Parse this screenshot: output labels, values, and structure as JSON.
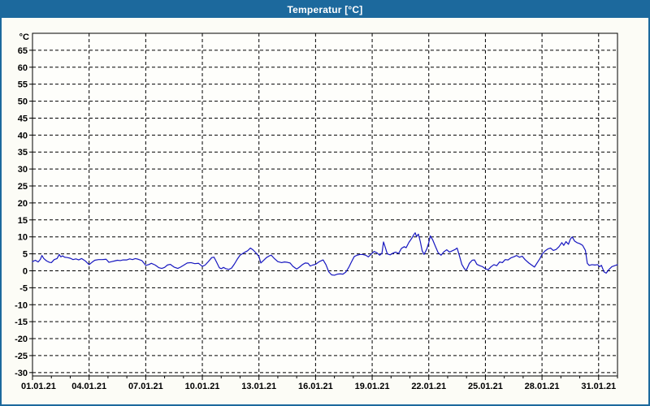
{
  "window": {
    "title": "Temperatur [°C]"
  },
  "colors": {
    "titlebar": "#1c699d",
    "window_border": "#1c699d",
    "plot_background": "#fefefb",
    "plot_border": "#000000",
    "grid": "#000000",
    "line": "#1717c0",
    "label_text": "#000000"
  },
  "chart_data": {
    "type": "line",
    "title": "Temperatur [°C]",
    "y_unit": "°C",
    "grid": "dashed",
    "legend": "none",
    "ylim": [
      -31,
      70
    ],
    "y_ticks": [
      65,
      60,
      55,
      50,
      45,
      40,
      35,
      30,
      25,
      20,
      15,
      10,
      5,
      0,
      -5,
      -10,
      -15,
      -20,
      -25,
      -30
    ],
    "x_range_days": [
      0,
      31
    ],
    "x_tick_days": [
      0,
      3,
      6,
      9,
      12,
      15,
      18,
      21,
      24,
      27,
      30
    ],
    "x_tick_labels": [
      "01.01.21",
      "04.01.21",
      "07.01.21",
      "10.01.21",
      "13.01.21",
      "16.01.21",
      "19.01.21",
      "22.01.21",
      "25.01.21",
      "28.01.21",
      "31.01.21"
    ],
    "x_minor_tick_interval_days": 1,
    "series": [
      {
        "name": "Temperatur",
        "unit": "°C",
        "points": [
          [
            0,
            2.7
          ],
          [
            0.15,
            3.1
          ],
          [
            0.3,
            2.6
          ],
          [
            0.42,
            3.4
          ],
          [
            0.5,
            4.5
          ],
          [
            0.6,
            3.6
          ],
          [
            0.75,
            2.9
          ],
          [
            0.9,
            2.5
          ],
          [
            1.0,
            2.4
          ],
          [
            1.15,
            3.3
          ],
          [
            1.3,
            3.6
          ],
          [
            1.42,
            4.8
          ],
          [
            1.5,
            4.1
          ],
          [
            1.6,
            4.4
          ],
          [
            1.7,
            4.0
          ],
          [
            1.85,
            3.9
          ],
          [
            2.0,
            3.7
          ],
          [
            2.15,
            3.3
          ],
          [
            2.3,
            3.5
          ],
          [
            2.45,
            3.2
          ],
          [
            2.6,
            3.6
          ],
          [
            2.8,
            2.9
          ],
          [
            3.0,
            1.8
          ],
          [
            3.15,
            2.5
          ],
          [
            3.3,
            3.1
          ],
          [
            3.5,
            3.3
          ],
          [
            3.7,
            3.3
          ],
          [
            3.9,
            3.4
          ],
          [
            4.05,
            2.5
          ],
          [
            4.2,
            2.7
          ],
          [
            4.35,
            2.9
          ],
          [
            4.5,
            3.1
          ],
          [
            4.65,
            3.0
          ],
          [
            4.8,
            3.2
          ],
          [
            5.0,
            3.2
          ],
          [
            5.15,
            3.5
          ],
          [
            5.3,
            3.3
          ],
          [
            5.45,
            3.6
          ],
          [
            5.6,
            3.4
          ],
          [
            5.8,
            3.0
          ],
          [
            6.0,
            1.6
          ],
          [
            6.15,
            1.8
          ],
          [
            6.3,
            2.2
          ],
          [
            6.5,
            1.7
          ],
          [
            6.7,
            0.9
          ],
          [
            6.85,
            0.7
          ],
          [
            7.0,
            1.0
          ],
          [
            7.15,
            1.7
          ],
          [
            7.3,
            1.9
          ],
          [
            7.5,
            1.1
          ],
          [
            7.7,
            0.7
          ],
          [
            7.85,
            1.1
          ],
          [
            8.0,
            1.6
          ],
          [
            8.2,
            2.3
          ],
          [
            8.4,
            2.4
          ],
          [
            8.6,
            2.1
          ],
          [
            8.8,
            2.2
          ],
          [
            9.0,
            1.3
          ],
          [
            9.15,
            1.7
          ],
          [
            9.3,
            2.6
          ],
          [
            9.5,
            3.9
          ],
          [
            9.62,
            4.0
          ],
          [
            9.75,
            2.6
          ],
          [
            9.9,
            0.9
          ],
          [
            10.0,
            0.6
          ],
          [
            10.12,
            1.0
          ],
          [
            10.25,
            0.6
          ],
          [
            10.4,
            0.4
          ],
          [
            10.55,
            0.8
          ],
          [
            10.7,
            2.0
          ],
          [
            10.85,
            3.4
          ],
          [
            11.0,
            4.6
          ],
          [
            11.2,
            5.3
          ],
          [
            11.4,
            5.9
          ],
          [
            11.55,
            6.7
          ],
          [
            11.7,
            6.1
          ],
          [
            11.85,
            5.2
          ],
          [
            12.0,
            4.2
          ],
          [
            12.1,
            2.3
          ],
          [
            12.25,
            3.1
          ],
          [
            12.4,
            3.9
          ],
          [
            12.55,
            4.4
          ],
          [
            12.65,
            4.6
          ],
          [
            12.8,
            3.7
          ],
          [
            13.0,
            2.7
          ],
          [
            13.2,
            2.4
          ],
          [
            13.35,
            2.6
          ],
          [
            13.5,
            2.5
          ],
          [
            13.65,
            2.3
          ],
          [
            13.8,
            1.3
          ],
          [
            14.0,
            0.5
          ],
          [
            14.15,
            1.1
          ],
          [
            14.3,
            1.8
          ],
          [
            14.45,
            2.3
          ],
          [
            14.6,
            2.2
          ],
          [
            14.72,
            1.4
          ],
          [
            14.85,
            1.7
          ],
          [
            15.0,
            1.9
          ],
          [
            15.2,
            2.7
          ],
          [
            15.4,
            3.2
          ],
          [
            15.55,
            1.8
          ],
          [
            15.7,
            -0.3
          ],
          [
            15.85,
            -1.2
          ],
          [
            16.0,
            -1.3
          ],
          [
            16.15,
            -1.0
          ],
          [
            16.3,
            -0.9
          ],
          [
            16.45,
            -1.0
          ],
          [
            16.6,
            -0.4
          ],
          [
            16.75,
            0.9
          ],
          [
            16.9,
            2.6
          ],
          [
            17.05,
            4.2
          ],
          [
            17.2,
            4.6
          ],
          [
            17.35,
            4.8
          ],
          [
            17.5,
            4.8
          ],
          [
            17.65,
            4.6
          ],
          [
            17.8,
            4.1
          ],
          [
            17.95,
            4.9
          ],
          [
            18.1,
            5.7
          ],
          [
            18.25,
            5.3
          ],
          [
            18.4,
            4.6
          ],
          [
            18.52,
            5.2
          ],
          [
            18.6,
            8.5
          ],
          [
            18.7,
            6.8
          ],
          [
            18.8,
            5.0
          ],
          [
            18.95,
            4.7
          ],
          [
            19.1,
            5.2
          ],
          [
            19.25,
            5.5
          ],
          [
            19.4,
            5.1
          ],
          [
            19.55,
            6.6
          ],
          [
            19.7,
            7.1
          ],
          [
            19.8,
            6.8
          ],
          [
            19.95,
            8.4
          ],
          [
            20.1,
            9.6
          ],
          [
            20.2,
            10.6
          ],
          [
            20.28,
            11.2
          ],
          [
            20.35,
            10.1
          ],
          [
            20.45,
            10.8
          ],
          [
            20.55,
            8.6
          ],
          [
            20.65,
            5.9
          ],
          [
            20.75,
            4.8
          ],
          [
            20.9,
            6.5
          ],
          [
            21.0,
            8.3
          ],
          [
            21.08,
            10.3
          ],
          [
            21.2,
            9.2
          ],
          [
            21.35,
            7.2
          ],
          [
            21.5,
            5.3
          ],
          [
            21.65,
            4.6
          ],
          [
            21.8,
            5.6
          ],
          [
            21.95,
            6.2
          ],
          [
            22.1,
            5.5
          ],
          [
            22.25,
            5.9
          ],
          [
            22.4,
            6.3
          ],
          [
            22.5,
            6.7
          ],
          [
            22.62,
            4.5
          ],
          [
            22.75,
            1.9
          ],
          [
            22.9,
            0.5
          ],
          [
            23.0,
            0.3
          ],
          [
            23.15,
            2.2
          ],
          [
            23.3,
            3.1
          ],
          [
            23.42,
            3.2
          ],
          [
            23.55,
            1.9
          ],
          [
            23.7,
            1.5
          ],
          [
            23.85,
            1.2
          ],
          [
            24.0,
            0.6
          ],
          [
            24.15,
            0.3
          ],
          [
            24.3,
            1.2
          ],
          [
            24.45,
            1.8
          ],
          [
            24.6,
            1.5
          ],
          [
            24.75,
            2.6
          ],
          [
            24.9,
            2.4
          ],
          [
            25.05,
            3.3
          ],
          [
            25.2,
            3.2
          ],
          [
            25.35,
            3.8
          ],
          [
            25.5,
            4.1
          ],
          [
            25.65,
            4.5
          ],
          [
            25.8,
            4.0
          ],
          [
            25.95,
            4.3
          ],
          [
            26.1,
            3.3
          ],
          [
            26.3,
            2.3
          ],
          [
            26.5,
            1.5
          ],
          [
            26.6,
            1.1
          ],
          [
            26.75,
            2.4
          ],
          [
            26.9,
            3.7
          ],
          [
            27.0,
            4.8
          ],
          [
            27.15,
            5.8
          ],
          [
            27.3,
            6.4
          ],
          [
            27.45,
            6.7
          ],
          [
            27.6,
            6.0
          ],
          [
            27.75,
            6.3
          ],
          [
            27.9,
            7.1
          ],
          [
            28.05,
            8.3
          ],
          [
            28.15,
            7.5
          ],
          [
            28.27,
            8.6
          ],
          [
            28.4,
            7.8
          ],
          [
            28.5,
            9.3
          ],
          [
            28.6,
            10.0
          ],
          [
            28.72,
            8.8
          ],
          [
            28.85,
            8.3
          ],
          [
            29.0,
            8.0
          ],
          [
            29.15,
            7.5
          ],
          [
            29.3,
            6.0
          ],
          [
            29.4,
            2.2
          ],
          [
            29.5,
            1.6
          ],
          [
            29.65,
            1.8
          ],
          [
            29.8,
            1.7
          ],
          [
            29.95,
            1.8
          ],
          [
            30.05,
            1.2
          ],
          [
            30.15,
            1.6
          ],
          [
            30.28,
            -0.3
          ],
          [
            30.4,
            -0.7
          ],
          [
            30.55,
            0.4
          ],
          [
            30.7,
            1.2
          ],
          [
            30.85,
            1.5
          ],
          [
            31.0,
            1.8
          ]
        ]
      }
    ]
  }
}
